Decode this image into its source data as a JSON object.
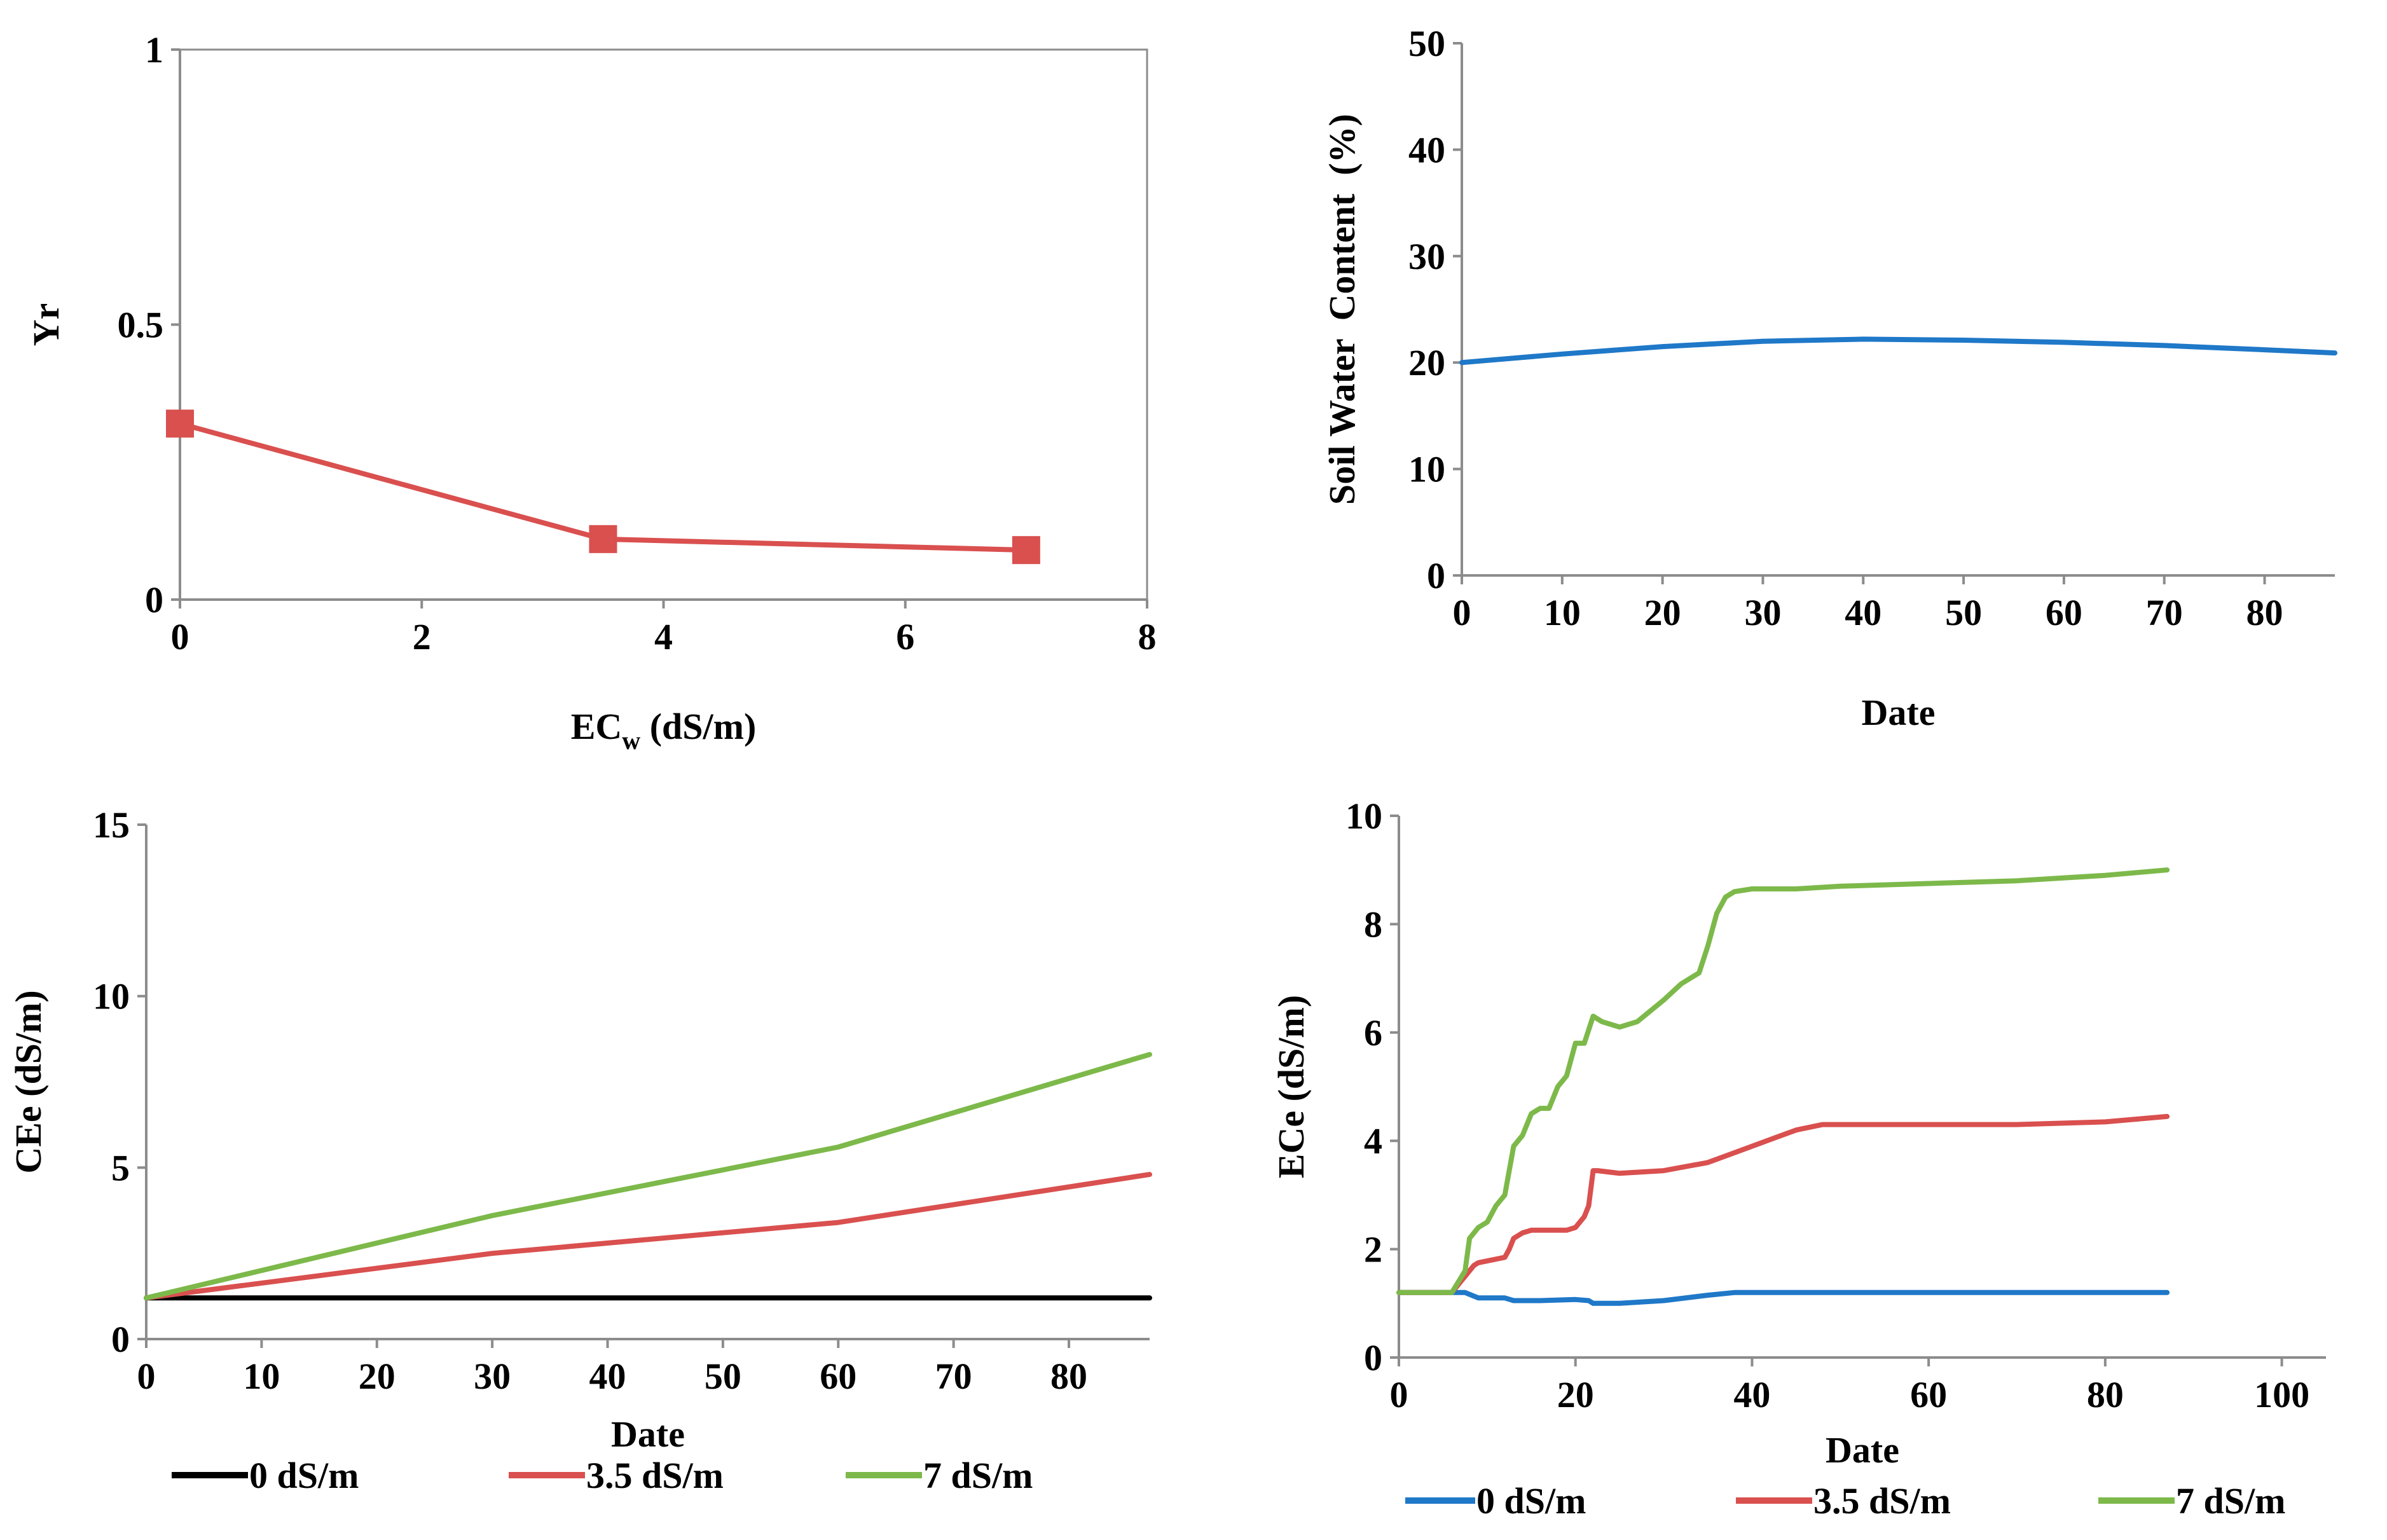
{
  "chart_data": [
    {
      "type": "line",
      "panel": "top-left",
      "title": "",
      "xlabel": "EC",
      "xlabel_sub": "w",
      "xlabel_unit": " (dS/m)",
      "ylabel": "Yr",
      "xlim": [
        0,
        8
      ],
      "ylim": [
        0,
        1
      ],
      "xticks": [
        0,
        2,
        4,
        6,
        8
      ],
      "xtick_labels": [
        "0",
        "2",
        "4",
        "6",
        "8"
      ],
      "yticks": [
        0,
        0.5,
        1
      ],
      "ytick_labels": [
        "0",
        "0.5",
        "1"
      ],
      "grid": false,
      "series": [
        {
          "name": "Yr",
          "color": "#d9504f",
          "marker": "square",
          "x": [
            0,
            3.5,
            7
          ],
          "y": [
            0.32,
            0.11,
            0.09
          ]
        }
      ]
    },
    {
      "type": "line",
      "panel": "top-right",
      "title": "",
      "xlabel": "Date",
      "ylabel": "Soil Water  Content  (%)",
      "xlim": [
        0,
        87
      ],
      "ylim": [
        0,
        50
      ],
      "xticks": [
        0,
        10,
        20,
        30,
        40,
        50,
        60,
        70,
        80
      ],
      "xtick_labels": [
        "0",
        "10",
        "20",
        "30",
        "40",
        "50",
        "60",
        "70",
        "80"
      ],
      "yticks": [
        0,
        10,
        20,
        30,
        40,
        50
      ],
      "ytick_labels": [
        "0",
        "10",
        "20",
        "30",
        "40",
        "50"
      ],
      "grid": false,
      "series": [
        {
          "name": "Soil water content",
          "color": "#1f78c8",
          "x": [
            0,
            10,
            20,
            30,
            40,
            50,
            60,
            70,
            80,
            87
          ],
          "y": [
            20,
            20.8,
            21.5,
            22,
            22.2,
            22.1,
            21.9,
            21.6,
            21.2,
            20.9
          ]
        }
      ]
    },
    {
      "type": "line",
      "panel": "bottom-left",
      "title": "",
      "xlabel": "Date",
      "ylabel": "CEe (dS/m)",
      "xlim": [
        0,
        87
      ],
      "ylim": [
        0,
        15
      ],
      "xticks": [
        0,
        10,
        20,
        30,
        40,
        50,
        60,
        70,
        80
      ],
      "xtick_labels": [
        "0",
        "10",
        "20",
        "30",
        "40",
        "50",
        "60",
        "70",
        "80"
      ],
      "yticks": [
        0,
        5,
        10,
        15
      ],
      "ytick_labels": [
        "0",
        "5",
        "10",
        "15"
      ],
      "grid": false,
      "legend": "bottom",
      "series": [
        {
          "name": "0 dS/m",
          "color": "#000000",
          "x": [
            0,
            87
          ],
          "y": [
            1.2,
            1.2
          ]
        },
        {
          "name": "3.5 dS/m",
          "color": "#d9504f",
          "x": [
            0,
            30,
            60,
            87
          ],
          "y": [
            1.2,
            2.5,
            3.4,
            4.8
          ]
        },
        {
          "name": "7 dS/m",
          "color": "#7db94a",
          "x": [
            0,
            30,
            60,
            87
          ],
          "y": [
            1.2,
            3.6,
            5.6,
            8.3
          ]
        }
      ]
    },
    {
      "type": "line",
      "panel": "bottom-right",
      "title": "",
      "xlabel": "Date",
      "ylabel": "ECe (dS/m)",
      "xlim": [
        0,
        105
      ],
      "ylim": [
        0,
        10
      ],
      "xticks": [
        0,
        20,
        40,
        60,
        80,
        100
      ],
      "xtick_labels": [
        "0",
        "20",
        "40",
        "60",
        "80",
        "100"
      ],
      "yticks": [
        0,
        2,
        4,
        6,
        8,
        10
      ],
      "ytick_labels": [
        "0",
        "2",
        "4",
        "6",
        "8",
        "10"
      ],
      "grid": false,
      "legend": "bottom",
      "series": [
        {
          "name": "0 dS/m",
          "color": "#1f78c8",
          "x": [
            0,
            6,
            7.5,
            9,
            12,
            13,
            16,
            20,
            21.5,
            22,
            25,
            30,
            35,
            38,
            40,
            87
          ],
          "y": [
            1.2,
            1.2,
            1.2,
            1.1,
            1.1,
            1.05,
            1.05,
            1.07,
            1.05,
            1.0,
            1.0,
            1.05,
            1.15,
            1.2,
            1.2,
            1.2
          ]
        },
        {
          "name": "3.5 dS/m",
          "color": "#d9504f",
          "x": [
            0,
            6,
            7.5,
            8.5,
            9,
            12,
            12.5,
            13,
            14,
            15,
            18,
            19,
            20,
            21,
            21.5,
            22,
            22.5,
            25,
            30,
            35,
            40,
            45,
            48,
            60,
            70,
            80,
            87
          ],
          "y": [
            1.2,
            1.2,
            1.5,
            1.7,
            1.75,
            1.85,
            2.0,
            2.2,
            2.3,
            2.35,
            2.35,
            2.35,
            2.4,
            2.6,
            2.8,
            3.45,
            3.45,
            3.4,
            3.45,
            3.6,
            3.9,
            4.2,
            4.3,
            4.3,
            4.3,
            4.35,
            4.45
          ]
        },
        {
          "name": "7 dS/m",
          "color": "#7db94a",
          "x": [
            0,
            6,
            7.5,
            8,
            9,
            10,
            11,
            12,
            13,
            14,
            15,
            16,
            17,
            18,
            19,
            20,
            21,
            22,
            23,
            25,
            27,
            30,
            32,
            34,
            35,
            36,
            37,
            38,
            40,
            45,
            50,
            60,
            70,
            80,
            87
          ],
          "y": [
            1.2,
            1.2,
            1.6,
            2.2,
            2.4,
            2.5,
            2.8,
            3.0,
            3.9,
            4.1,
            4.5,
            4.6,
            4.6,
            5.0,
            5.2,
            5.8,
            5.8,
            6.3,
            6.2,
            6.1,
            6.2,
            6.6,
            6.9,
            7.1,
            7.6,
            8.2,
            8.5,
            8.6,
            8.65,
            8.65,
            8.7,
            8.75,
            8.8,
            8.9,
            9.0
          ]
        }
      ]
    }
  ]
}
